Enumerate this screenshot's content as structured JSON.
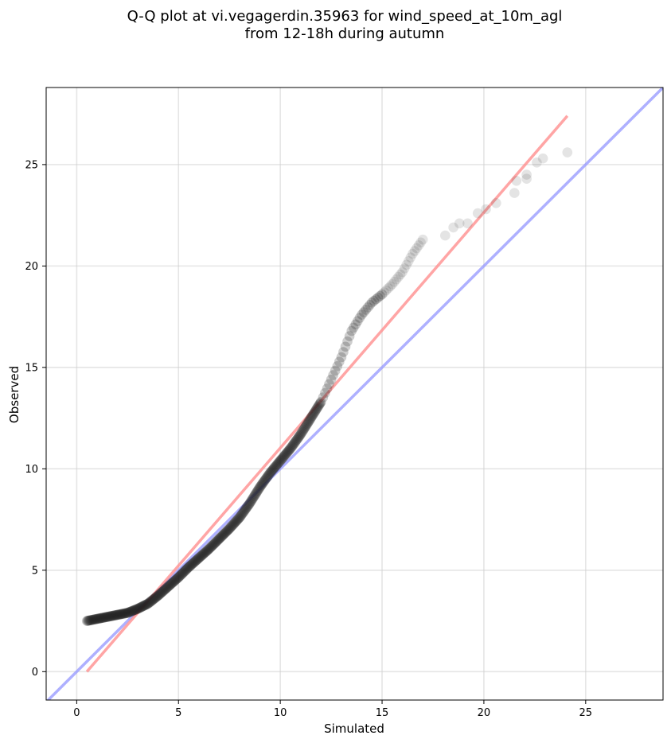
{
  "chart_data": {
    "type": "scatter",
    "title_lines": [
      "Q-Q plot at vi.vegagerdin.35963 for wind_speed_at_10m_agl",
      "from 12-18h during autumn"
    ],
    "xlabel": "Simulated",
    "ylabel": "Observed",
    "xlim": [
      -1.5,
      28.8
    ],
    "ylim": [
      -1.4,
      28.8
    ],
    "x_ticks": [
      0,
      5,
      10,
      15,
      20,
      25
    ],
    "y_ticks": [
      0,
      5,
      10,
      15,
      20,
      25
    ],
    "grid": true,
    "quantile_anchors": [
      [
        0.5,
        2.5
      ],
      [
        1.0,
        2.6
      ],
      [
        1.5,
        2.7
      ],
      [
        2.0,
        2.8
      ],
      [
        2.5,
        2.9
      ],
      [
        3.0,
        3.1
      ],
      [
        3.5,
        3.35
      ],
      [
        4.0,
        3.75
      ],
      [
        4.5,
        4.2
      ],
      [
        5.0,
        4.65
      ],
      [
        5.5,
        5.15
      ],
      [
        6.0,
        5.6
      ],
      [
        6.5,
        6.05
      ],
      [
        7.0,
        6.55
      ],
      [
        7.5,
        7.05
      ],
      [
        8.0,
        7.6
      ],
      [
        8.5,
        8.3
      ],
      [
        9.0,
        9.1
      ],
      [
        9.5,
        9.8
      ],
      [
        10.0,
        10.4
      ],
      [
        10.5,
        11.0
      ],
      [
        11.0,
        11.7
      ],
      [
        11.5,
        12.5
      ],
      [
        12.0,
        13.3
      ],
      [
        12.5,
        14.4
      ],
      [
        13.0,
        15.5
      ],
      [
        13.5,
        16.8
      ],
      [
        14.0,
        17.6
      ],
      [
        14.5,
        18.2
      ],
      [
        15.0,
        18.6
      ],
      [
        15.5,
        19.1
      ],
      [
        16.0,
        19.7
      ],
      [
        16.5,
        20.6
      ],
      [
        17.0,
        21.3
      ]
    ],
    "tail_points": [
      [
        18.1,
        21.5
      ],
      [
        18.5,
        21.9
      ],
      [
        18.8,
        22.1
      ],
      [
        19.2,
        22.1
      ],
      [
        19.7,
        22.6
      ],
      [
        20.1,
        22.8
      ],
      [
        20.6,
        23.1
      ],
      [
        21.5,
        23.6
      ],
      [
        21.6,
        24.2
      ],
      [
        22.1,
        24.5
      ],
      [
        22.1,
        24.3
      ],
      [
        22.6,
        25.1
      ],
      [
        22.9,
        25.3
      ],
      [
        24.1,
        25.6
      ]
    ],
    "reference_lines": [
      {
        "style": "identity y = x",
        "color": "#a8aaff",
        "x": [
          -1.5,
          28.8
        ],
        "y": [
          -1.5,
          28.8
        ]
      },
      {
        "style": "fitted",
        "color": "#ff9a9a",
        "x": [
          0.5,
          24.1
        ],
        "y": [
          0.0,
          27.4
        ]
      }
    ],
    "colors": {
      "points": "#222222",
      "identity_line": "#9a9cff",
      "fit_line": "#ff8f8f",
      "grid": "#cfcfcf",
      "axes": "#000000"
    }
  }
}
